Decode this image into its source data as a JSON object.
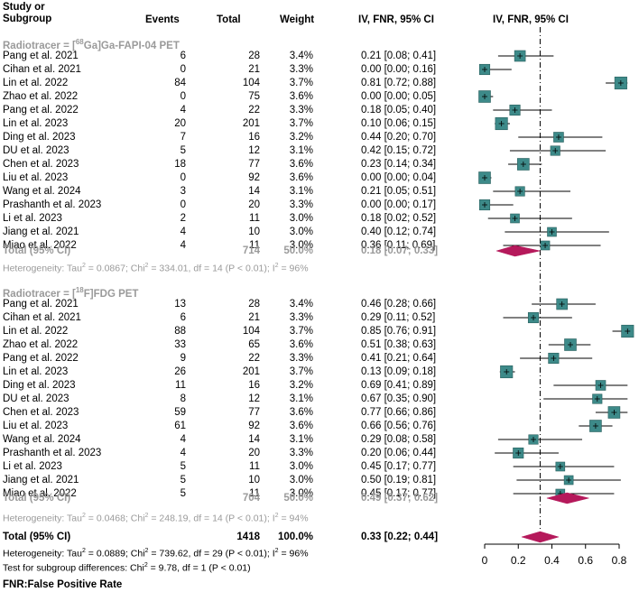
{
  "headers": {
    "study": "Study or\nSubgroup",
    "events": "Events",
    "total": "Total",
    "weight": "Weight",
    "ci": "IV, FNR, 95% CI",
    "plot": "IV, FNR, 95% CI"
  },
  "groups": [
    {
      "label_prefix": "Radiotracer = [",
      "label_sup": "68",
      "label_suffix": "Ga]Ga-FAPI-04 PET",
      "rows": [
        {
          "study": "Pang et al. 2021",
          "events": "6",
          "total": "28",
          "weight": "3.4%",
          "ci": "0.21 [0.08; 0.41]"
        },
        {
          "study": "Cihan et al.  2021",
          "events": "0",
          "total": "21",
          "weight": "3.3%",
          "ci": "0.00 [0.00; 0.16]"
        },
        {
          "study": "Lin et al. 2022",
          "events": "84",
          "total": "104",
          "weight": "3.7%",
          "ci": "0.81 [0.72; 0.88]"
        },
        {
          "study": "Zhao et al. 2022",
          "events": "0",
          "total": "75",
          "weight": "3.6%",
          "ci": "0.00 [0.00; 0.05]"
        },
        {
          "study": "Pang et al. 2022",
          "events": "4",
          "total": "22",
          "weight": "3.3%",
          "ci": "0.18 [0.05; 0.40]"
        },
        {
          "study": "Lin et al. 2023",
          "events": "20",
          "total": "201",
          "weight": "3.7%",
          "ci": "0.10 [0.06; 0.15]"
        },
        {
          "study": "Ding et al. 2023",
          "events": "7",
          "total": "16",
          "weight": "3.2%",
          "ci": "0.44 [0.20; 0.70]"
        },
        {
          "study": "DU et al. 2023",
          "events": "5",
          "total": "12",
          "weight": "3.1%",
          "ci": "0.42 [0.15; 0.72]"
        },
        {
          "study": "Chen et al. 2023",
          "events": "18",
          "total": "77",
          "weight": "3.6%",
          "ci": "0.23 [0.14; 0.34]"
        },
        {
          "study": "Liu et al. 2023",
          "events": "0",
          "total": "92",
          "weight": "3.6%",
          "ci": "0.00 [0.00; 0.04]"
        },
        {
          "study": "Wang et al. 2024",
          "events": "3",
          "total": "14",
          "weight": "3.1%",
          "ci": "0.21 [0.05; 0.51]"
        },
        {
          "study": "Prashanth et al. 2023",
          "events": "0",
          "total": "20",
          "weight": "3.3%",
          "ci": "0.00 [0.00; 0.17]"
        },
        {
          "study": "Li et al. 2023",
          "events": "2",
          "total": "11",
          "weight": "3.0%",
          "ci": "0.18 [0.02; 0.52]"
        },
        {
          "study": "Jiang et al. 2021",
          "events": "4",
          "total": "10",
          "weight": "3.0%",
          "ci": "0.40 [0.12; 0.74]"
        },
        {
          "study": "Miao et al. 2022",
          "events": "4",
          "total": "11",
          "weight": "3.0%",
          "ci": "0.36 [0.11; 0.69]"
        }
      ],
      "total": {
        "label": "Total (95% CI)",
        "total": "714",
        "weight": "50.0%",
        "ci": "0.18 [0.07; 0.33]"
      },
      "heterogeneity": {
        "a": "Heterogeneity: Tau",
        "b": " = 0.0867; Chi",
        "c": " = 334.01, df = 14 (P < 0.01); I",
        "d": " = 96%",
        "sup": "2"
      }
    },
    {
      "label_prefix": "Radiotracer = [",
      "label_sup": "18",
      "label_suffix": "F]FDG PET",
      "rows": [
        {
          "study": "Pang et al. 2021",
          "events": "13",
          "total": "28",
          "weight": "3.4%",
          "ci": "0.46 [0.28; 0.66]"
        },
        {
          "study": "Cihan et al.  2021",
          "events": "6",
          "total": "21",
          "weight": "3.3%",
          "ci": "0.29 [0.11; 0.52]"
        },
        {
          "study": "Lin et al. 2022",
          "events": "88",
          "total": "104",
          "weight": "3.7%",
          "ci": "0.85 [0.76; 0.91]"
        },
        {
          "study": "Zhao et al. 2022",
          "events": "33",
          "total": "65",
          "weight": "3.6%",
          "ci": "0.51 [0.38; 0.63]"
        },
        {
          "study": "Pang et al. 2022",
          "events": "9",
          "total": "22",
          "weight": "3.3%",
          "ci": "0.41 [0.21; 0.64]"
        },
        {
          "study": "Lin et al. 2023",
          "events": "26",
          "total": "201",
          "weight": "3.7%",
          "ci": "0.13 [0.09; 0.18]"
        },
        {
          "study": "Ding et al. 2023",
          "events": "11",
          "total": "16",
          "weight": "3.2%",
          "ci": "0.69 [0.41; 0.89]"
        },
        {
          "study": "DU et al. 2023",
          "events": "8",
          "total": "12",
          "weight": "3.1%",
          "ci": "0.67 [0.35; 0.90]"
        },
        {
          "study": "Chen et al. 2023",
          "events": "59",
          "total": "77",
          "weight": "3.6%",
          "ci": "0.77 [0.66; 0.86]"
        },
        {
          "study": "Liu et al. 2023",
          "events": "61",
          "total": "92",
          "weight": "3.6%",
          "ci": "0.66 [0.56; 0.76]"
        },
        {
          "study": "Wang et al. 2024",
          "events": "4",
          "total": "14",
          "weight": "3.1%",
          "ci": "0.29 [0.08; 0.58]"
        },
        {
          "study": "Prashanth et al. 2023",
          "events": "4",
          "total": "20",
          "weight": "3.3%",
          "ci": "0.20 [0.06; 0.44]"
        },
        {
          "study": "Li et al. 2023",
          "events": "5",
          "total": "11",
          "weight": "3.0%",
          "ci": "0.45 [0.17; 0.77]"
        },
        {
          "study": "Jiang et al. 2021",
          "events": "5",
          "total": "10",
          "weight": "3.0%",
          "ci": "0.50 [0.19; 0.81]"
        },
        {
          "study": "Miao et al. 2022",
          "events": "5",
          "total": "11",
          "weight": "3.0%",
          "ci": "0.45 [0.17; 0.77]"
        }
      ],
      "total": {
        "label": "Total (95% CI)",
        "total": "704",
        "weight": "50.0%",
        "ci": "0.49 [0.37; 0.62]"
      },
      "heterogeneity": {
        "a": "Heterogeneity: Tau",
        "b": " = 0.0468; Chi",
        "c": " = 248.19, df = 14 (P < 0.01); I",
        "d": " = 94%",
        "sup": "2"
      }
    }
  ],
  "overall": {
    "label": "Total (95% CI)",
    "total": "1418",
    "weight": "100.0%",
    "ci": "0.33 [0.22; 0.44]",
    "heterogeneity": {
      "a": "Heterogeneity: Tau",
      "b": " = 0.0889; Chi",
      "c": " = 739.62, df = 29 (P < 0.01); I",
      "d": " = 96%",
      "sup": "2"
    },
    "subgroup_test": {
      "a": "Test for subgroup differences: Chi",
      "b": " = 9.78, df = 1 (P < 0.01)",
      "sup": "2"
    }
  },
  "footnote": "FNR:False Positive Rate",
  "colors": {
    "box": "#3d8a89",
    "diamond": "#b5195b",
    "gray": "#9a9a9a"
  },
  "chart_data": {
    "type": "forest",
    "title": "IV, FNR, 95% CI",
    "xlim": [
      0,
      0.85
    ],
    "xticks": [
      0,
      0.2,
      0.4,
      0.6,
      0.8
    ],
    "xtick_labels": [
      "0",
      "0.2",
      "0.4",
      "0.6",
      "0.8"
    ],
    "reference_line": 0.33,
    "series": [
      {
        "name": "[68Ga]Ga-FAPI-04 PET",
        "estimates": [
          0.21,
          0.0,
          0.81,
          0.0,
          0.18,
          0.1,
          0.44,
          0.42,
          0.23,
          0.0,
          0.21,
          0.0,
          0.18,
          0.4,
          0.36
        ],
        "lower": [
          0.08,
          0.0,
          0.72,
          0.0,
          0.05,
          0.06,
          0.2,
          0.15,
          0.14,
          0.0,
          0.05,
          0.0,
          0.02,
          0.12,
          0.11
        ],
        "upper": [
          0.41,
          0.16,
          0.88,
          0.05,
          0.4,
          0.15,
          0.7,
          0.72,
          0.34,
          0.04,
          0.51,
          0.17,
          0.52,
          0.74,
          0.69
        ],
        "weights": [
          3.4,
          3.3,
          3.7,
          3.6,
          3.3,
          3.7,
          3.2,
          3.1,
          3.6,
          3.6,
          3.1,
          3.3,
          3.0,
          3.0,
          3.0
        ],
        "pooled": {
          "estimate": 0.18,
          "lower": 0.07,
          "upper": 0.33
        }
      },
      {
        "name": "[18F]FDG PET",
        "estimates": [
          0.46,
          0.29,
          0.85,
          0.51,
          0.41,
          0.13,
          0.69,
          0.67,
          0.77,
          0.66,
          0.29,
          0.2,
          0.45,
          0.5,
          0.45
        ],
        "lower": [
          0.28,
          0.11,
          0.76,
          0.38,
          0.21,
          0.09,
          0.41,
          0.35,
          0.66,
          0.56,
          0.08,
          0.06,
          0.17,
          0.19,
          0.17
        ],
        "upper": [
          0.66,
          0.52,
          0.91,
          0.63,
          0.64,
          0.18,
          0.89,
          0.9,
          0.86,
          0.76,
          0.58,
          0.44,
          0.77,
          0.81,
          0.77
        ],
        "weights": [
          3.4,
          3.3,
          3.7,
          3.6,
          3.3,
          3.7,
          3.2,
          3.1,
          3.6,
          3.6,
          3.1,
          3.3,
          3.0,
          3.0,
          3.0
        ],
        "pooled": {
          "estimate": 0.49,
          "lower": 0.37,
          "upper": 0.62
        }
      }
    ],
    "overall_pooled": {
      "estimate": 0.33,
      "lower": 0.22,
      "upper": 0.44
    }
  }
}
